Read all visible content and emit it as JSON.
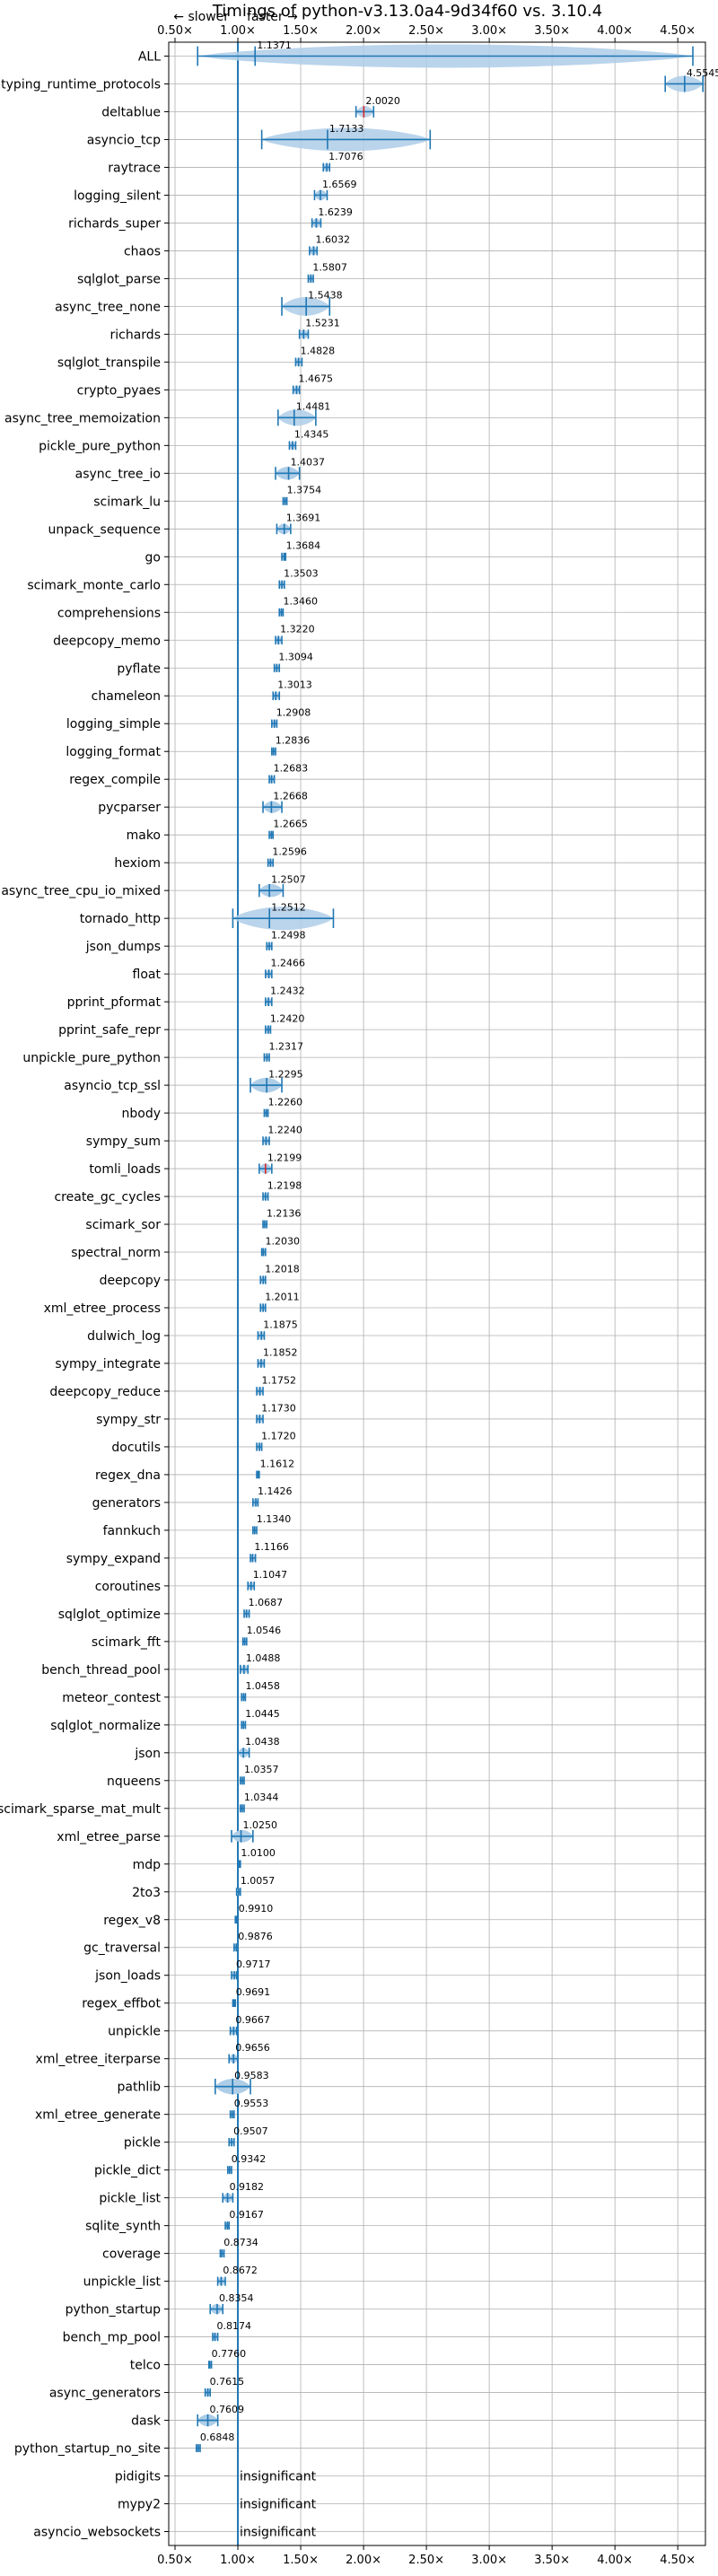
{
  "chart_data": {
    "type": "violin",
    "title": "Timings of python-v3.13.0a4-9d34f60 vs. 3.10.4",
    "x_tick_labels": [
      "0.50×",
      "1.00×",
      "1.50×",
      "2.00×",
      "2.50×",
      "3.00×",
      "3.50×",
      "4.00×",
      "4.50×"
    ],
    "x_ticks": [
      0.5,
      1.0,
      1.5,
      2.0,
      2.5,
      3.0,
      3.5,
      4.0,
      4.5
    ],
    "xlim": [
      0.45,
      4.72
    ],
    "reference_line": 1.0,
    "slower_label": "← slower",
    "faster_label": "faster →",
    "insignificant_label": "insignificant",
    "colors": {
      "accent": "#1f77b4",
      "fill": "#aecde7",
      "median_red": "#d62728",
      "grid": "#b0b0b0"
    },
    "benchmarks": [
      {
        "name": "ALL",
        "value": 1.1371,
        "low": 0.68,
        "high": 4.62
      },
      {
        "name": "typing_runtime_protocols",
        "value": 4.5545,
        "low": 4.4,
        "high": 4.7
      },
      {
        "name": "deltablue",
        "value": 2.002,
        "low": 1.94,
        "high": 2.08
      },
      {
        "name": "asyncio_tcp",
        "value": 1.7133,
        "low": 1.19,
        "high": 2.53
      },
      {
        "name": "raytrace",
        "value": 1.7076,
        "low": 1.68,
        "high": 1.73
      },
      {
        "name": "logging_silent",
        "value": 1.6569,
        "low": 1.61,
        "high": 1.71
      },
      {
        "name": "richards_super",
        "value": 1.6239,
        "low": 1.59,
        "high": 1.66
      },
      {
        "name": "chaos",
        "value": 1.6032,
        "low": 1.57,
        "high": 1.63
      },
      {
        "name": "sqlglot_parse",
        "value": 1.5807,
        "low": 1.56,
        "high": 1.6
      },
      {
        "name": "async_tree_none",
        "value": 1.5438,
        "low": 1.35,
        "high": 1.73
      },
      {
        "name": "richards",
        "value": 1.5231,
        "low": 1.49,
        "high": 1.56
      },
      {
        "name": "sqlglot_transpile",
        "value": 1.4828,
        "low": 1.46,
        "high": 1.51
      },
      {
        "name": "crypto_pyaes",
        "value": 1.4675,
        "low": 1.44,
        "high": 1.49
      },
      {
        "name": "async_tree_memoization",
        "value": 1.4481,
        "low": 1.32,
        "high": 1.62
      },
      {
        "name": "pickle_pure_python",
        "value": 1.4345,
        "low": 1.41,
        "high": 1.46
      },
      {
        "name": "async_tree_io",
        "value": 1.4037,
        "low": 1.3,
        "high": 1.49
      },
      {
        "name": "scimark_lu",
        "value": 1.3754,
        "low": 1.36,
        "high": 1.39
      },
      {
        "name": "unpack_sequence",
        "value": 1.3691,
        "low": 1.31,
        "high": 1.42
      },
      {
        "name": "go",
        "value": 1.3684,
        "low": 1.35,
        "high": 1.38
      },
      {
        "name": "scimark_monte_carlo",
        "value": 1.3503,
        "low": 1.33,
        "high": 1.37
      },
      {
        "name": "comprehensions",
        "value": 1.346,
        "low": 1.33,
        "high": 1.36
      },
      {
        "name": "deepcopy_memo",
        "value": 1.322,
        "low": 1.3,
        "high": 1.35
      },
      {
        "name": "pyflate",
        "value": 1.3094,
        "low": 1.29,
        "high": 1.33
      },
      {
        "name": "chameleon",
        "value": 1.3013,
        "low": 1.28,
        "high": 1.33
      },
      {
        "name": "logging_simple",
        "value": 1.2908,
        "low": 1.27,
        "high": 1.31
      },
      {
        "name": "logging_format",
        "value": 1.2836,
        "low": 1.27,
        "high": 1.3
      },
      {
        "name": "regex_compile",
        "value": 1.2683,
        "low": 1.25,
        "high": 1.29
      },
      {
        "name": "pycparser",
        "value": 1.2668,
        "low": 1.2,
        "high": 1.35
      },
      {
        "name": "mako",
        "value": 1.2665,
        "low": 1.25,
        "high": 1.28
      },
      {
        "name": "hexiom",
        "value": 1.2596,
        "low": 1.24,
        "high": 1.28
      },
      {
        "name": "async_tree_cpu_io_mixed",
        "value": 1.2507,
        "low": 1.17,
        "high": 1.36
      },
      {
        "name": "tornado_http",
        "value": 1.2512,
        "low": 0.96,
        "high": 1.76
      },
      {
        "name": "json_dumps",
        "value": 1.2498,
        "low": 1.23,
        "high": 1.27
      },
      {
        "name": "float",
        "value": 1.2466,
        "low": 1.22,
        "high": 1.27
      },
      {
        "name": "pprint_pformat",
        "value": 1.2432,
        "low": 1.22,
        "high": 1.27
      },
      {
        "name": "pprint_safe_repr",
        "value": 1.242,
        "low": 1.22,
        "high": 1.26
      },
      {
        "name": "unpickle_pure_python",
        "value": 1.2317,
        "low": 1.21,
        "high": 1.25
      },
      {
        "name": "asyncio_tcp_ssl",
        "value": 1.2295,
        "low": 1.1,
        "high": 1.35
      },
      {
        "name": "nbody",
        "value": 1.226,
        "low": 1.21,
        "high": 1.24
      },
      {
        "name": "sympy_sum",
        "value": 1.224,
        "low": 1.2,
        "high": 1.25
      },
      {
        "name": "tomli_loads",
        "value": 1.2199,
        "low": 1.17,
        "high": 1.27
      },
      {
        "name": "create_gc_cycles",
        "value": 1.2198,
        "low": 1.2,
        "high": 1.24
      },
      {
        "name": "scimark_sor",
        "value": 1.2136,
        "low": 1.2,
        "high": 1.23
      },
      {
        "name": "spectral_norm",
        "value": 1.203,
        "low": 1.19,
        "high": 1.22
      },
      {
        "name": "deepcopy",
        "value": 1.2018,
        "low": 1.18,
        "high": 1.22
      },
      {
        "name": "xml_etree_process",
        "value": 1.2011,
        "low": 1.18,
        "high": 1.22
      },
      {
        "name": "dulwich_log",
        "value": 1.1875,
        "low": 1.16,
        "high": 1.21
      },
      {
        "name": "sympy_integrate",
        "value": 1.1852,
        "low": 1.16,
        "high": 1.21
      },
      {
        "name": "deepcopy_reduce",
        "value": 1.1752,
        "low": 1.15,
        "high": 1.2
      },
      {
        "name": "sympy_str",
        "value": 1.173,
        "low": 1.15,
        "high": 1.2
      },
      {
        "name": "docutils",
        "value": 1.172,
        "low": 1.15,
        "high": 1.19
      },
      {
        "name": "regex_dna",
        "value": 1.1612,
        "low": 1.15,
        "high": 1.17
      },
      {
        "name": "generators",
        "value": 1.1426,
        "low": 1.12,
        "high": 1.16
      },
      {
        "name": "fannkuch",
        "value": 1.134,
        "low": 1.12,
        "high": 1.15
      },
      {
        "name": "sympy_expand",
        "value": 1.1166,
        "low": 1.1,
        "high": 1.14
      },
      {
        "name": "coroutines",
        "value": 1.1047,
        "low": 1.08,
        "high": 1.13
      },
      {
        "name": "sqlglot_optimize",
        "value": 1.0687,
        "low": 1.05,
        "high": 1.09
      },
      {
        "name": "scimark_fft",
        "value": 1.0546,
        "low": 1.04,
        "high": 1.07
      },
      {
        "name": "bench_thread_pool",
        "value": 1.0488,
        "low": 1.02,
        "high": 1.08
      },
      {
        "name": "meteor_contest",
        "value": 1.0458,
        "low": 1.03,
        "high": 1.06
      },
      {
        "name": "sqlglot_normalize",
        "value": 1.0445,
        "low": 1.03,
        "high": 1.06
      },
      {
        "name": "json",
        "value": 1.0438,
        "low": 1.0,
        "high": 1.09
      },
      {
        "name": "nqueens",
        "value": 1.0357,
        "low": 1.02,
        "high": 1.05
      },
      {
        "name": "scimark_sparse_mat_mult",
        "value": 1.0344,
        "low": 1.02,
        "high": 1.05
      },
      {
        "name": "xml_etree_parse",
        "value": 1.025,
        "low": 0.95,
        "high": 1.12
      },
      {
        "name": "mdp",
        "value": 1.01,
        "low": 1.0,
        "high": 1.02
      },
      {
        "name": "2to3",
        "value": 1.0057,
        "low": 0.99,
        "high": 1.02
      },
      {
        "name": "regex_v8",
        "value": 0.991,
        "low": 0.98,
        "high": 1.0
      },
      {
        "name": "gc_traversal",
        "value": 0.9876,
        "low": 0.97,
        "high": 1.0
      },
      {
        "name": "json_loads",
        "value": 0.9717,
        "low": 0.95,
        "high": 0.99
      },
      {
        "name": "regex_effbot",
        "value": 0.9691,
        "low": 0.96,
        "high": 0.98
      },
      {
        "name": "unpickle",
        "value": 0.9667,
        "low": 0.94,
        "high": 0.99
      },
      {
        "name": "xml_etree_iterparse",
        "value": 0.9656,
        "low": 0.93,
        "high": 1.0
      },
      {
        "name": "pathlib",
        "value": 0.9583,
        "low": 0.82,
        "high": 1.1
      },
      {
        "name": "xml_etree_generate",
        "value": 0.9553,
        "low": 0.94,
        "high": 0.97
      },
      {
        "name": "pickle",
        "value": 0.9507,
        "low": 0.93,
        "high": 0.97
      },
      {
        "name": "pickle_dict",
        "value": 0.9342,
        "low": 0.92,
        "high": 0.95
      },
      {
        "name": "pickle_list",
        "value": 0.9182,
        "low": 0.88,
        "high": 0.96
      },
      {
        "name": "sqlite_synth",
        "value": 0.9167,
        "low": 0.9,
        "high": 0.93
      },
      {
        "name": "coverage",
        "value": 0.8734,
        "low": 0.86,
        "high": 0.89
      },
      {
        "name": "unpickle_list",
        "value": 0.8672,
        "low": 0.84,
        "high": 0.9
      },
      {
        "name": "python_startup",
        "value": 0.8354,
        "low": 0.78,
        "high": 0.88
      },
      {
        "name": "bench_mp_pool",
        "value": 0.8174,
        "low": 0.8,
        "high": 0.84
      },
      {
        "name": "telco",
        "value": 0.776,
        "low": 0.77,
        "high": 0.79
      },
      {
        "name": "async_generators",
        "value": 0.7615,
        "low": 0.74,
        "high": 0.78
      },
      {
        "name": "dask",
        "value": 0.7609,
        "low": 0.68,
        "high": 0.84
      },
      {
        "name": "python_startup_no_site",
        "value": 0.6848,
        "low": 0.67,
        "high": 0.7
      },
      {
        "name": "pidigits",
        "value": null,
        "low": null,
        "high": null,
        "insignificant": true
      },
      {
        "name": "mypy2",
        "value": null,
        "low": null,
        "high": null,
        "insignificant": true
      },
      {
        "name": "asyncio_websockets",
        "value": null,
        "low": null,
        "high": null,
        "insignificant": true
      }
    ]
  }
}
